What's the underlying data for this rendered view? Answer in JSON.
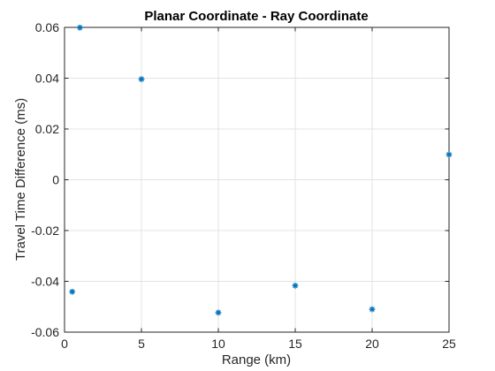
{
  "chart_data": {
    "type": "scatter",
    "title": "Planar Coordinate - Ray Coordinate",
    "xlabel": "Range (km)",
    "ylabel": "Travel Time Difference (ms)",
    "xlim": [
      0,
      25
    ],
    "ylim": [
      -0.06,
      0.06
    ],
    "xticks": [
      0,
      5,
      10,
      15,
      20,
      25
    ],
    "xtick_labels": [
      "0",
      "5",
      "10",
      "15",
      "20",
      "25"
    ],
    "yticks": [
      -0.06,
      -0.04,
      -0.02,
      0,
      0.02,
      0.04,
      0.06
    ],
    "ytick_labels": [
      "-0.06",
      "-0.04",
      "-0.02",
      "0",
      "0.02",
      "0.04",
      "0.06"
    ],
    "grid": true,
    "marker": "asterisk",
    "series": [
      {
        "color": "#0072bd",
        "points": [
          {
            "x": 0.5,
            "y": -0.0441
          },
          {
            "x": 1,
            "y": 0.0599
          },
          {
            "x": 5,
            "y": 0.0396
          },
          {
            "x": 10,
            "y": -0.0523
          },
          {
            "x": 15,
            "y": -0.0417
          },
          {
            "x": 20,
            "y": -0.051
          },
          {
            "x": 25,
            "y": 0.0099
          }
        ]
      }
    ]
  }
}
